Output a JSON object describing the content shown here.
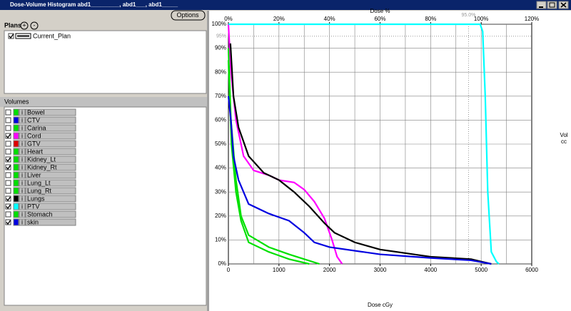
{
  "window": {
    "title": "Dose-Volume Histogram abd1_________, abd1___, abd1_____"
  },
  "options_button": "Options",
  "plans": {
    "label": "Plans",
    "add": "+",
    "remove": "-",
    "items": [
      {
        "name": "Current_Plan",
        "checked": true
      }
    ]
  },
  "volumes": {
    "label": "Volumes",
    "info": "i",
    "items": [
      {
        "name": "Bowel",
        "checked": false,
        "color": "#00e000"
      },
      {
        "name": "CTV",
        "checked": false,
        "color": "#0000e0"
      },
      {
        "name": "Carina",
        "checked": false,
        "color": "#00e000"
      },
      {
        "name": "Cord",
        "checked": true,
        "color": "#ff00ff",
        "dvh": {
          "x": [
            0,
            50,
            150,
            300,
            500,
            800,
            1000,
            1300,
            1500,
            1700,
            1900,
            2050,
            2150,
            2250
          ],
          "y": [
            100,
            80,
            60,
            45,
            39,
            37,
            35,
            34,
            31,
            26,
            19,
            10,
            3,
            0
          ]
        }
      },
      {
        "name": "GTV",
        "checked": false,
        "color": "#e00000"
      },
      {
        "name": "Heart",
        "checked": false,
        "color": "#00e000"
      },
      {
        "name": "Kidney_Lt",
        "checked": true,
        "color": "#00e000",
        "dvh": {
          "x": [
            0,
            50,
            150,
            250,
            400,
            800,
            1200,
            1500,
            1800
          ],
          "y": [
            90,
            60,
            35,
            20,
            12,
            7,
            4,
            2,
            0
          ]
        }
      },
      {
        "name": "Kidney_Rt",
        "checked": true,
        "color": "#00e000",
        "dvh": {
          "x": [
            0,
            60,
            150,
            250,
            400,
            800,
            1200,
            1600
          ],
          "y": [
            85,
            50,
            30,
            18,
            9,
            5,
            2,
            0
          ]
        }
      },
      {
        "name": "Liver",
        "checked": false,
        "color": "#00e000"
      },
      {
        "name": "Lung_Lt",
        "checked": false,
        "color": "#00e000"
      },
      {
        "name": "Lung_Rt",
        "checked": false,
        "color": "#00e000"
      },
      {
        "name": "Lungs",
        "checked": true,
        "color": "#000000",
        "dvh": {
          "x": [
            40,
            100,
            200,
            400,
            700,
            1000,
            1300,
            1600,
            1900,
            2100,
            2500,
            3000,
            4000,
            4800,
            5000,
            5200
          ],
          "y": [
            92,
            70,
            57,
            45,
            38,
            35,
            30,
            24,
            17,
            13,
            9,
            6,
            3,
            2,
            1,
            0
          ]
        }
      },
      {
        "name": "PTV",
        "checked": true,
        "color": "#00ffff",
        "dvh": {
          "x": [
            0,
            4980,
            5030,
            5080,
            5130,
            5200,
            5300,
            5350
          ],
          "y": [
            100,
            100,
            97,
            70,
            30,
            5,
            1,
            0
          ]
        }
      },
      {
        "name": "Stomach",
        "checked": false,
        "color": "#00e000"
      },
      {
        "name": "skin",
        "checked": true,
        "color": "#0000e0",
        "dvh": {
          "x": [
            0,
            50,
            100,
            200,
            400,
            800,
            1200,
            1500,
            1700,
            2000,
            3000,
            4000,
            4800,
            5200
          ],
          "y": [
            70,
            60,
            45,
            35,
            25,
            21,
            18,
            13,
            9,
            7,
            4,
            2.5,
            1.5,
            0
          ]
        }
      }
    ]
  },
  "dvh_chart": {
    "xlabel": "Dose cGy",
    "x2label": "Dose %",
    "y2label": [
      "Vol",
      "cc"
    ],
    "xlim": [
      0,
      6000
    ],
    "ylim": [
      0,
      100
    ],
    "x2lim": [
      0,
      120
    ],
    "xticks": [
      0,
      1000,
      2000,
      3000,
      4000,
      5000,
      6000
    ],
    "x2ticks": [
      {
        "value": 0,
        "label": "0%"
      },
      {
        "value": 20,
        "label": "20%"
      },
      {
        "value": 40,
        "label": "40%"
      },
      {
        "value": 60,
        "label": "60%"
      },
      {
        "value": 80,
        "label": "80%"
      },
      {
        "value": 100,
        "label": "100%"
      },
      {
        "value": 120,
        "label": "120%"
      }
    ],
    "yticks": [
      {
        "value": 0,
        "label": "0%"
      },
      {
        "value": 10,
        "label": "10%"
      },
      {
        "value": 20,
        "label": "20%"
      },
      {
        "value": 30,
        "label": "30%"
      },
      {
        "value": 40,
        "label": "40%"
      },
      {
        "value": 50,
        "label": "50%"
      },
      {
        "value": 60,
        "label": "60%"
      },
      {
        "value": 70,
        "label": "70%"
      },
      {
        "value": 80,
        "label": "80%"
      },
      {
        "value": 90,
        "label": "90%"
      },
      {
        "value": 100,
        "label": "100%"
      }
    ],
    "xgrid": [
      500,
      1000,
      1500,
      2000,
      2500,
      3000,
      3500,
      4000,
      4500,
      5000,
      5500
    ],
    "reference": {
      "dose": 4750,
      "dose_label": "95.0%",
      "volume": 95,
      "volume_label": "95%"
    }
  }
}
